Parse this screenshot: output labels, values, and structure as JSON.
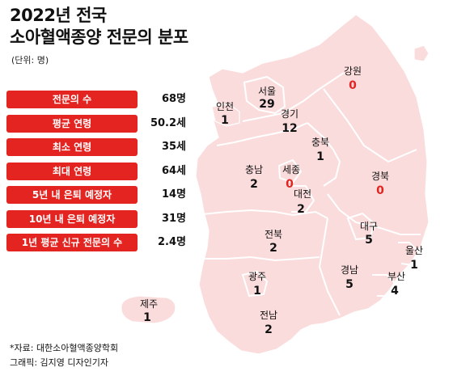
{
  "title_line1": "2022년 전국",
  "title_line2": "소아혈액종양 전문의 분포",
  "unit": "(단위: 명)",
  "stats": [
    {
      "label": "전문의 수",
      "value": "68명"
    },
    {
      "label": "평균 연령",
      "value": "50.2세"
    },
    {
      "label": "최소 연령",
      "value": "35세"
    },
    {
      "label": "최대 연령",
      "value": "64세"
    },
    {
      "label": "5년 내 은퇴 예정자",
      "value": "14명"
    },
    {
      "label": "10년 내 은퇴 예정자",
      "value": "31명"
    },
    {
      "label": "1년 평균 신규 전문의 수",
      "value": "2.4명"
    }
  ],
  "regions": [
    {
      "name": "서울",
      "count": "29"
    },
    {
      "name": "인천",
      "count": "1"
    },
    {
      "name": "경기",
      "count": "12"
    },
    {
      "name": "강원",
      "count": "0"
    },
    {
      "name": "충북",
      "count": "1"
    },
    {
      "name": "충남",
      "count": "2"
    },
    {
      "name": "세종",
      "count": "0"
    },
    {
      "name": "대전",
      "count": "2"
    },
    {
      "name": "경북",
      "count": "0"
    },
    {
      "name": "대구",
      "count": "5"
    },
    {
      "name": "전북",
      "count": "2"
    },
    {
      "name": "울산",
      "count": "1"
    },
    {
      "name": "광주",
      "count": "1"
    },
    {
      "name": "경남",
      "count": "5"
    },
    {
      "name": "부산",
      "count": "4"
    },
    {
      "name": "전남",
      "count": "2"
    },
    {
      "name": "제주",
      "count": "1"
    }
  ],
  "zero_color": "#e32420",
  "map_fill": "#fbdcdc",
  "source": "*자료: 대한소아혈액종양학회",
  "credit": "그래픽: 김지영 디자인기자"
}
